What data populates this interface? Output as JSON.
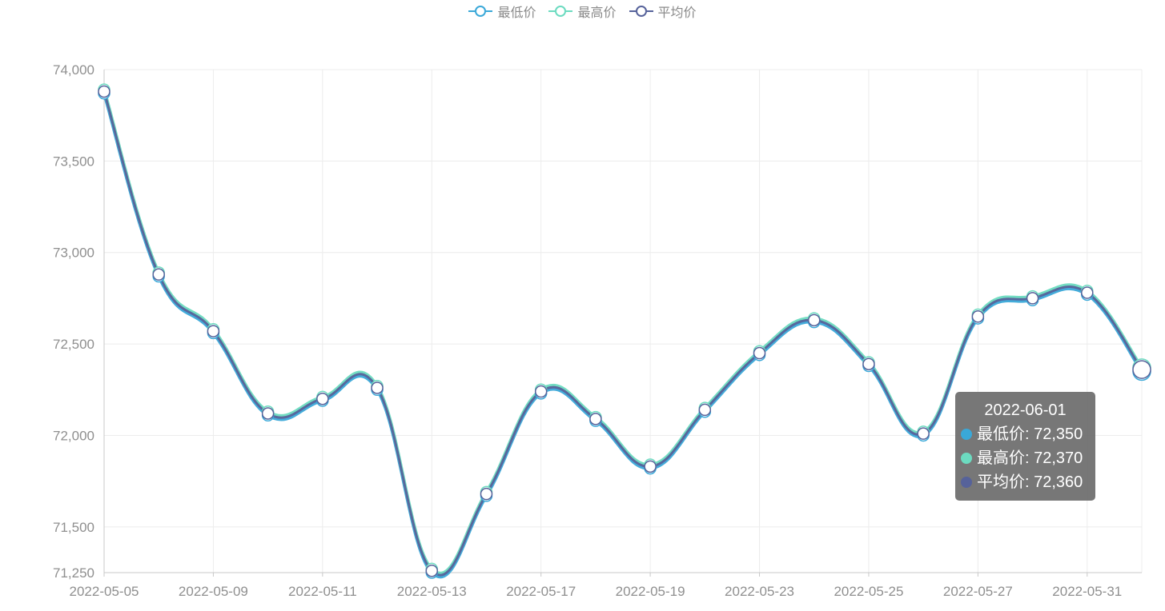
{
  "legend": {
    "items": [
      {
        "name": "最低价",
        "color": "#3aa8d8"
      },
      {
        "name": "最高价",
        "color": "#6cdbc0"
      },
      {
        "name": "平均价",
        "color": "#56629a"
      }
    ]
  },
  "tooltip": {
    "title": "2022-06-01",
    "rows": [
      {
        "label": "最低价: 72,350",
        "color": "#3aa8d8"
      },
      {
        "label": "最高价: 72,370",
        "color": "#6cdbc0"
      },
      {
        "label": "平均价: 72,360",
        "color": "#56629a"
      }
    ]
  },
  "chart_data": {
    "type": "line",
    "x": [
      "2022-05-05",
      "2022-05-06",
      "2022-05-09",
      "2022-05-10",
      "2022-05-11",
      "2022-05-12",
      "2022-05-13",
      "2022-05-16",
      "2022-05-17",
      "2022-05-18",
      "2022-05-19",
      "2022-05-20",
      "2022-05-23",
      "2022-05-24",
      "2022-05-25",
      "2022-05-26",
      "2022-05-27",
      "2022-05-30",
      "2022-05-31",
      "2022-06-01"
    ],
    "x_tick_labels": [
      "2022-05-05",
      "2022-05-09",
      "2022-05-11",
      "2022-05-13",
      "2022-05-17",
      "2022-05-19",
      "2022-05-23",
      "2022-05-25",
      "2022-05-27",
      "2022-05-31"
    ],
    "y_ticks": [
      71250,
      71500,
      72000,
      72500,
      73000,
      73500,
      74000
    ],
    "y_tick_labels": [
      "71,250",
      "71,500",
      "72,000",
      "72,500",
      "73,000",
      "73,500",
      "74,000"
    ],
    "ylim": [
      71250,
      74000
    ],
    "grid": true,
    "legend_position": "top-center",
    "series": [
      {
        "name": "最低价",
        "color": "#3aa8d8",
        "values": [
          73870,
          72870,
          72560,
          72110,
          72190,
          72250,
          71250,
          71670,
          72230,
          72080,
          71820,
          72130,
          72440,
          72620,
          72380,
          72000,
          72640,
          72740,
          72770,
          72350
        ]
      },
      {
        "name": "最高价",
        "color": "#6cdbc0",
        "values": [
          73890,
          72890,
          72580,
          72130,
          72210,
          72270,
          71270,
          71690,
          72250,
          72100,
          71840,
          72150,
          72460,
          72640,
          72400,
          72020,
          72660,
          72760,
          72790,
          72370
        ]
      },
      {
        "name": "平均价",
        "color": "#56629a",
        "values": [
          73880,
          72880,
          72570,
          72120,
          72200,
          72260,
          71260,
          71680,
          72240,
          72090,
          71830,
          72140,
          72450,
          72630,
          72390,
          72010,
          72650,
          72750,
          72780,
          72360
        ]
      }
    ]
  }
}
